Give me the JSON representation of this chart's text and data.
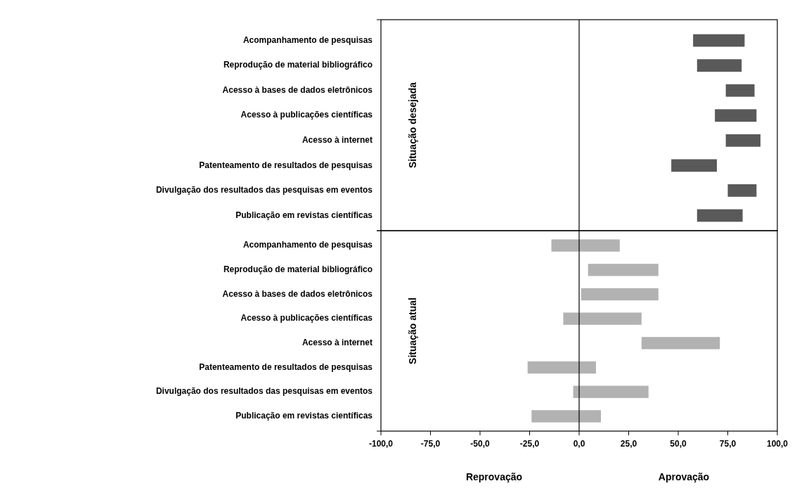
{
  "chart_data": [
    {
      "type": "bar",
      "orientation": "horizontal",
      "ylabel": "Situação desejada",
      "categories": [
        "Acompanhamento de pesquisas",
        "Reprodução de material bibliográfico",
        "Acesso à bases de dados eletrônicos",
        "Acesso à publicações científicas",
        "Acesso à internet",
        "Patenteamento de resultados de pesquisas",
        "Divulgação dos resultados das pesquisas em eventos",
        "Publicação em revistas científicas"
      ],
      "base": [
        57.5,
        59.5,
        74,
        68.5,
        74,
        46.5,
        75,
        59.5
      ],
      "values": [
        26,
        22.5,
        14.5,
        21,
        17.5,
        23,
        14.5,
        23
      ],
      "color": "#595959",
      "xlim": [
        -100,
        100
      ],
      "tick_labels": "y",
      "ref_lines": [
        {
          "axis": "x",
          "value": 0
        }
      ]
    },
    {
      "type": "bar",
      "orientation": "horizontal",
      "ylabel": "Situação atual",
      "categories": [
        "Acompanhamento de pesquisas",
        "Reprodução de material bibliográfico",
        "Acesso à bases de dados eletrônicos",
        "Acesso à publicações científicas",
        "Acesso à internet",
        "Patenteamento de resultados de pesquisas",
        "Divulgação dos resultados das pesquisas em eventos",
        "Publicação em revistas científicas"
      ],
      "base": [
        -14,
        4.5,
        1,
        -8,
        31.5,
        -26,
        -3,
        -24
      ],
      "values": [
        34.5,
        35.5,
        39,
        39.5,
        39.5,
        34.5,
        38,
        35
      ],
      "color": "#b2b2b3",
      "xlim": [
        -100,
        100
      ],
      "xticks": [
        {
          "value": -100,
          "label": "-100,0"
        },
        {
          "value": -75,
          "label": "-75,0"
        },
        {
          "value": -50,
          "label": "-50,0"
        },
        {
          "value": -25,
          "label": "-25,0"
        },
        {
          "value": 0,
          "label": "0,0"
        },
        {
          "value": 25,
          "label": "25,0"
        },
        {
          "value": 50,
          "label": "50,0"
        },
        {
          "value": 75,
          "label": "75,0"
        },
        {
          "value": 100,
          "label": "100,0"
        }
      ],
      "ref_lines": [
        {
          "axis": "x",
          "value": 0
        }
      ],
      "annotations": [
        "Reprovação",
        "Aprovação"
      ]
    }
  ]
}
